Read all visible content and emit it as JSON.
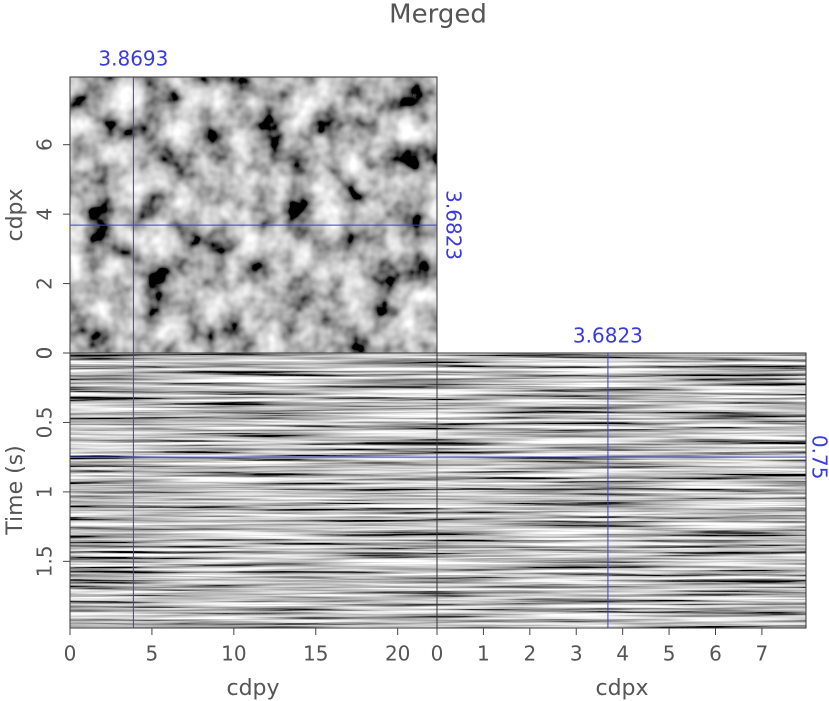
{
  "chart_data": {
    "type": "cube",
    "title": "Merged",
    "top": {
      "ylabel": "cdpx",
      "ylim": [
        0,
        7.95
      ],
      "yticks": [
        0,
        2,
        4,
        6
      ]
    },
    "front": {
      "xlabel": "cdpy",
      "xlim": [
        0,
        22.4
      ],
      "xticks": [
        0,
        5,
        10,
        15,
        20
      ],
      "ylabel": "Time (s)",
      "ylim": [
        0,
        1.98
      ],
      "yticks": [
        0,
        0.5,
        1,
        1.5
      ]
    },
    "side": {
      "xlabel": "cdpx",
      "xlim": [
        0,
        7.95
      ],
      "xticks": [
        0,
        1,
        2,
        3,
        4,
        5,
        6,
        7
      ]
    },
    "slices": {
      "cdpy": 3.8693,
      "cdpx": 3.6823,
      "time": 0.75
    },
    "slice_color": "#3b3bdc"
  }
}
